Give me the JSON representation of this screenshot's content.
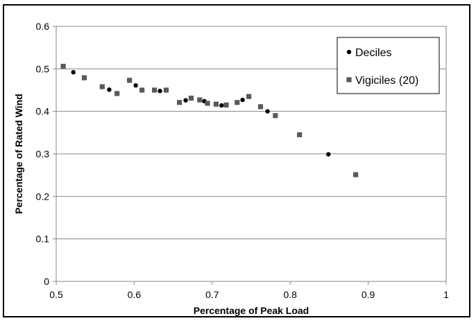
{
  "chart_data": {
    "type": "scatter",
    "xlabel": "Percentage of Peak Load",
    "ylabel": "Percentage of Rated Wind",
    "xlim": [
      0.5,
      1
    ],
    "ylim": [
      0,
      0.6
    ],
    "xticks": [
      0.5,
      0.6,
      0.7,
      0.8,
      0.9,
      1
    ],
    "yticks": [
      0,
      0.1,
      0.2,
      0.3,
      0.4,
      0.5,
      0.6
    ],
    "x_tick_labels": [
      "0.5",
      "0.6",
      "0.7",
      "0.8",
      "0.9",
      "1"
    ],
    "y_tick_labels": [
      "0",
      "0.1",
      "0.2",
      "0.3",
      "0.4",
      "0.5",
      "0.6"
    ],
    "grid": "horizontal",
    "legend_position": "top-right",
    "series": [
      {
        "name": "Deciles",
        "marker": "circle",
        "color": "#000000",
        "points": [
          [
            0.522,
            0.492
          ],
          [
            0.568,
            0.451
          ],
          [
            0.602,
            0.461
          ],
          [
            0.633,
            0.448
          ],
          [
            0.666,
            0.426
          ],
          [
            0.69,
            0.424
          ],
          [
            0.712,
            0.414
          ],
          [
            0.739,
            0.427
          ],
          [
            0.771,
            0.4
          ],
          [
            0.849,
            0.299
          ]
        ]
      },
      {
        "name": "Vigiciles (20)",
        "marker": "square",
        "color": "#595959",
        "points": [
          [
            0.509,
            0.506
          ],
          [
            0.536,
            0.479
          ],
          [
            0.559,
            0.458
          ],
          [
            0.578,
            0.442
          ],
          [
            0.594,
            0.473
          ],
          [
            0.61,
            0.45
          ],
          [
            0.626,
            0.45
          ],
          [
            0.641,
            0.45
          ],
          [
            0.658,
            0.421
          ],
          [
            0.673,
            0.431
          ],
          [
            0.684,
            0.427
          ],
          [
            0.694,
            0.419
          ],
          [
            0.705,
            0.417
          ],
          [
            0.718,
            0.415
          ],
          [
            0.732,
            0.421
          ],
          [
            0.747,
            0.435
          ],
          [
            0.762,
            0.411
          ],
          [
            0.781,
            0.39
          ],
          [
            0.812,
            0.345
          ],
          [
            0.884,
            0.251
          ]
        ]
      }
    ]
  }
}
